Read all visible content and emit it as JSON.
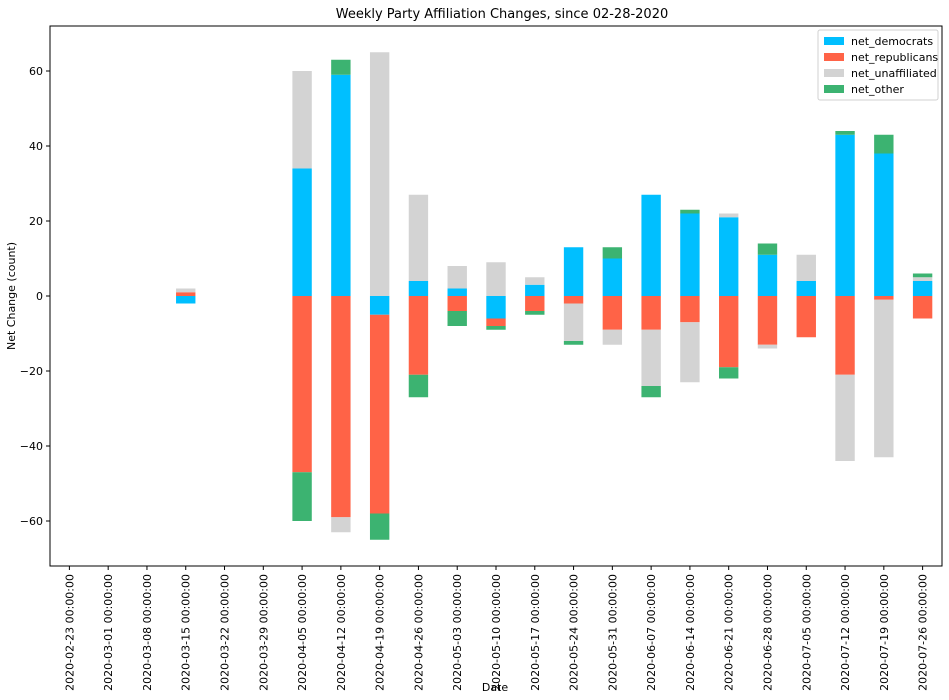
{
  "chart_data": {
    "type": "bar",
    "stacked": "diverging",
    "title": "Weekly Party Affiliation Changes, since 02-28-2020",
    "xlabel": "Date",
    "ylabel": "Net Change (count)",
    "ylim": [
      -72,
      72
    ],
    "yticks": [
      -60,
      -40,
      -20,
      0,
      20,
      40,
      60
    ],
    "grid": false,
    "legend_position": "top-right",
    "categories": [
      "2020-02-23 00:00:00",
      "2020-03-01 00:00:00",
      "2020-03-08 00:00:00",
      "2020-03-15 00:00:00",
      "2020-03-22 00:00:00",
      "2020-03-29 00:00:00",
      "2020-04-05 00:00:00",
      "2020-04-12 00:00:00",
      "2020-04-19 00:00:00",
      "2020-04-26 00:00:00",
      "2020-05-03 00:00:00",
      "2020-05-10 00:00:00",
      "2020-05-17 00:00:00",
      "2020-05-24 00:00:00",
      "2020-05-31 00:00:00",
      "2020-06-07 00:00:00",
      "2020-06-14 00:00:00",
      "2020-06-21 00:00:00",
      "2020-06-28 00:00:00",
      "2020-07-05 00:00:00",
      "2020-07-12 00:00:00",
      "2020-07-19 00:00:00",
      "2020-07-26 00:00:00"
    ],
    "series": [
      {
        "name": "net_democrats",
        "color": "#00bfff",
        "values": [
          0,
          0,
          0,
          -2,
          0,
          0,
          34,
          59,
          -5,
          4,
          2,
          -6,
          3,
          13,
          10,
          27,
          22,
          21,
          11,
          4,
          43,
          38,
          4
        ]
      },
      {
        "name": "net_republicans",
        "color": "#ff6347",
        "values": [
          0,
          0,
          0,
          1,
          0,
          0,
          -47,
          -59,
          -53,
          -21,
          -4,
          -2,
          -4,
          -2,
          -9,
          -9,
          -7,
          -19,
          -13,
          -11,
          -21,
          -1,
          -6
        ]
      },
      {
        "name": "net_unaffiliated",
        "color": "#d3d3d3",
        "values": [
          0,
          0,
          0,
          1,
          0,
          0,
          26,
          -4,
          65,
          23,
          6,
          9,
          2,
          -10,
          -4,
          -15,
          -16,
          1,
          -1,
          7,
          -23,
          -42,
          1
        ]
      },
      {
        "name": "net_other",
        "color": "#3cb371",
        "values": [
          0,
          0,
          0,
          0,
          0,
          0,
          -13,
          4,
          -7,
          -6,
          -4,
          -1,
          -1,
          -1,
          3,
          -3,
          1,
          -3,
          3,
          0,
          1,
          5,
          1
        ]
      }
    ]
  }
}
